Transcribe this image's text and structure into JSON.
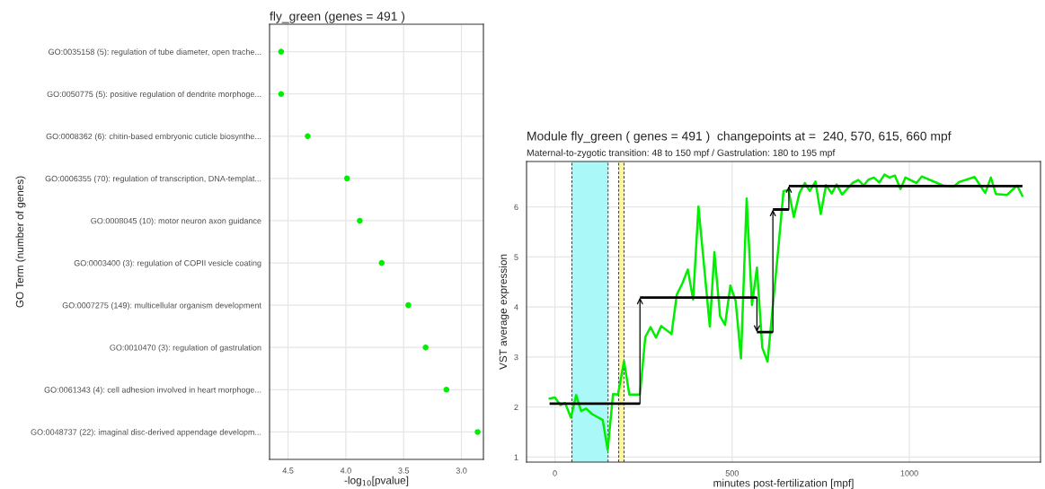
{
  "chart_data": [
    {
      "type": "scatter",
      "orientation": "horizontal",
      "title": "fly_green (genes = 491 )",
      "xlabel": "-log$_{10}$[pvalue]",
      "ylabel": "GO Term (number of genes)",
      "categories": [
        "GO:0035158 (5): regulation of tube diameter, open trache...",
        "GO:0050775 (5): positive regulation of dendrite morphoge...",
        "GO:0008362 (6): chitin-based embryonic cuticle biosynthe...",
        "GO:0006355 (70): regulation of transcription, DNA-templat...",
        "GO:0008045 (10): motor neuron axon guidance",
        "GO:0003400 (3): regulation of COPII vesicle coating",
        "GO:0007275 (149): multicellular organism development",
        "GO:0010470 (3): regulation of gastrulation",
        "GO:0061343 (4): cell adhesion involved in heart morphoge...",
        "GO:0048737 (22): imaginal disc-derived appendage developm..."
      ],
      "values": [
        4.56,
        4.56,
        4.33,
        3.99,
        3.88,
        3.69,
        3.46,
        3.31,
        3.13,
        2.86
      ],
      "color": "#00ee00",
      "marker": "circle",
      "xlim": [
        4.66,
        2.81
      ],
      "xticks": [
        4.5,
        {
          "value": 4,
          "label": "4.0"
        },
        3.5,
        {
          "value": 3,
          "label": "3.0"
        }
      ],
      "grid": true
    },
    {
      "type": "line",
      "title": "Module fly_green ( genes = 491 )  changepoints at =  240, 570, 615, 660 mpf",
      "subtitle": "Maternal-to-zygotic transition: 48 to 150 mpf / Gastrulation: 180 to 195 mpf",
      "xlabel": "minutes post-fertilization [mpf]",
      "ylabel": "VST average expression",
      "series": [
        {
          "color": "#00ee00",
          "x": [
            -15,
            0,
            16,
            29,
            45,
            60,
            74,
            88,
            105,
            135,
            149,
            164,
            178,
            195,
            210,
            240,
            255,
            270,
            285,
            300,
            329,
            344,
            360,
            375,
            390,
            405,
            437,
            450,
            466,
            480,
            495,
            510,
            525,
            541,
            556,
            570,
            585,
            600,
            630,
            645,
            659,
            674,
            690,
            705,
            719,
            735,
            750,
            765,
            781,
            795,
            810,
            840,
            856,
            871,
            885,
            900,
            915,
            930,
            944,
            959,
            975,
            989,
            1020,
            1035,
            1095,
            1125,
            1140,
            1184,
            1214,
            1230,
            1244,
            1275,
            1304,
            1319
          ],
          "values": [
            2.17,
            2.19,
            2.04,
            2.08,
            1.79,
            2.24,
            1.92,
            1.97,
            1.86,
            1.74,
            1.14,
            2.26,
            2.25,
            2.92,
            2.25,
            2.25,
            3.4,
            3.6,
            3.39,
            3.62,
            3.46,
            4.25,
            4.48,
            4.75,
            4.15,
            6.01,
            3.61,
            5.1,
            3.82,
            3.64,
            4.43,
            4.12,
            2.97,
            6.17,
            4.04,
            4.79,
            3.19,
            2.91,
            5.15,
            6.32,
            6.34,
            5.8,
            6.28,
            6.48,
            6.32,
            6.51,
            5.86,
            6.44,
            6.27,
            6.45,
            6.25,
            6.48,
            6.54,
            6.43,
            6.55,
            6.59,
            6.49,
            6.65,
            6.59,
            6.63,
            6.36,
            6.59,
            6.48,
            6.61,
            6.43,
            6.41,
            6.5,
            6.6,
            6.28,
            6.59,
            6.26,
            6.24,
            6.43,
            6.22
          ]
        },
        {
          "type": "step",
          "color": "#000000",
          "x": [
            -15,
            240,
            570,
            615,
            660,
            1319
          ],
          "values": [
            2.07,
            4.19,
            3.5,
            5.95,
            6.42,
            6.42
          ]
        }
      ],
      "bands": [
        {
          "axis": "x",
          "from": 48,
          "to": 150,
          "color": "#aaf8f8"
        },
        {
          "axis": "x",
          "from": 180,
          "to": 195,
          "color": "#fff59d"
        }
      ],
      "xlim": [
        -80,
        1370
      ],
      "ylim": [
        0.9,
        6.91
      ],
      "xticks": [
        0,
        500,
        1000
      ],
      "yticks": [
        1,
        2,
        3,
        4,
        5,
        6
      ],
      "grid": true
    }
  ]
}
